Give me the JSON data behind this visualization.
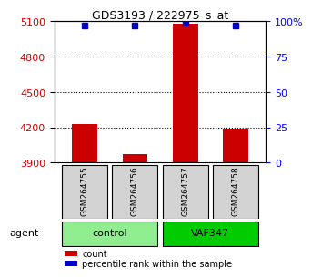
{
  "title": "GDS3193 / 222975_s_at",
  "samples": [
    "GSM264755",
    "GSM264756",
    "GSM264757",
    "GSM264758"
  ],
  "counts": [
    4230,
    3970,
    5080,
    4180
  ],
  "percentile_ranks": [
    97,
    97,
    99,
    97
  ],
  "y_min": 3900,
  "y_max": 5100,
  "y_ticks": [
    3900,
    4200,
    4500,
    4800,
    5100
  ],
  "right_y_ticks": [
    0,
    25,
    50,
    75,
    100
  ],
  "right_y_labels": [
    "0",
    "25",
    "50",
    "75",
    "100%"
  ],
  "groups": [
    {
      "label": "control",
      "indices": [
        0,
        1
      ],
      "color": "#90EE90"
    },
    {
      "label": "VAF347",
      "indices": [
        2,
        3
      ],
      "color": "#00CC00"
    }
  ],
  "bar_color": "#CC0000",
  "dot_color": "#0000CC",
  "grid_color": "#000000",
  "background_color": "#FFFFFF",
  "sample_box_color": "#D3D3D3",
  "agent_label": "agent",
  "legend_count_label": "count",
  "legend_pct_label": "percentile rank within the sample"
}
